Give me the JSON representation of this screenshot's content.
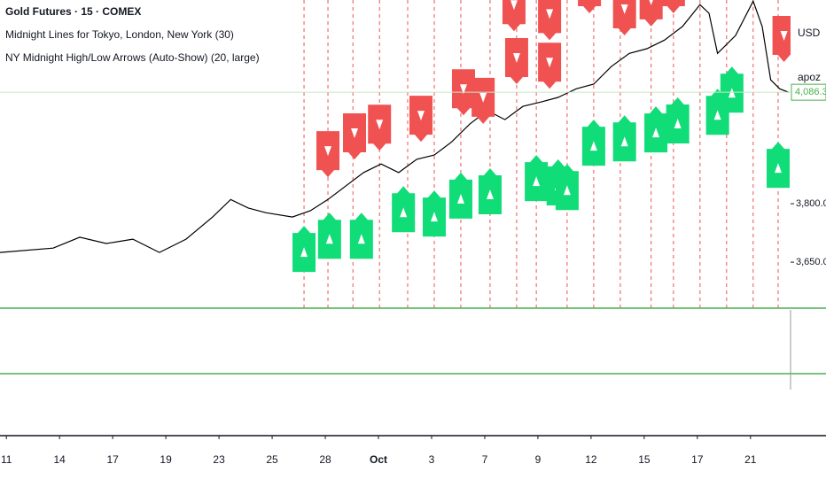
{
  "chart_data": {
    "type": "line",
    "title": "Gold Futures · 15 · COMEX",
    "indicators": [
      "Midnight Lines for Tokyo, London, New York (30)",
      "NY Midnight High/Low Arrows (Auto-Show) (20, large)"
    ],
    "currency": "USD",
    "symbol_label": "apoz",
    "color": "#000000",
    "x": [
      -0.12,
      0.88,
      1.38,
      1.88,
      2.38,
      2.88,
      3.38,
      3.88,
      4.22,
      4.55,
      4.88,
      5.38,
      5.72,
      6.05,
      6.38,
      6.72,
      7.05,
      7.38,
      7.72,
      8.05,
      8.38,
      8.72,
      9.05,
      9.38,
      9.72,
      10.05,
      10.38,
      10.72,
      11.05,
      11.38,
      11.72,
      12.05,
      12.38,
      12.72,
      13.05,
      13.22,
      13.38,
      13.72,
      14.05,
      14.22,
      14.38,
      14.55,
      14.72
    ],
    "values": [
      3675,
      3686,
      3714,
      3698,
      3709,
      3675,
      3709,
      3766,
      3811,
      3789,
      3777,
      3766,
      3782,
      3811,
      3845,
      3880,
      3902,
      3880,
      3914,
      3925,
      3959,
      4005,
      4039,
      4016,
      4050,
      4061,
      4073,
      4095,
      4107,
      4152,
      4186,
      4198,
      4220,
      4255,
      4311,
      4289,
      4186,
      4232,
      4320,
      4255,
      4118,
      4095,
      4086
    ],
    "xlim": [
      -0.12,
      14.72
    ],
    "ylim": [
      3532,
      4323
    ],
    "xticks": [
      {
        "value": 0,
        "label": "11"
      },
      {
        "value": 1,
        "label": "14"
      },
      {
        "value": 2,
        "label": "17"
      },
      {
        "value": 3,
        "label": "19"
      },
      {
        "value": 4,
        "label": "23"
      },
      {
        "value": 5,
        "label": "25"
      },
      {
        "value": 6,
        "label": "28"
      },
      {
        "value": 7,
        "label": "Oct"
      },
      {
        "value": 8,
        "label": "3"
      },
      {
        "value": 9,
        "label": "7"
      },
      {
        "value": 10,
        "label": "9"
      },
      {
        "value": 11,
        "label": "12"
      },
      {
        "value": 12,
        "label": "15"
      },
      {
        "value": 13,
        "label": "17"
      },
      {
        "value": 14,
        "label": "21"
      }
    ],
    "yticks": [
      {
        "value": 3650,
        "label": "3,650.0"
      },
      {
        "value": 3800,
        "label": "3,800.0"
      }
    ],
    "last_price": {
      "value": 4086.3,
      "label": "4,086.3"
    },
    "midnight_lines": [
      5.6,
      6.05,
      6.52,
      7.02,
      7.55,
      8.05,
      8.55,
      9.1,
      9.6,
      9.97,
      10.55,
      11.05,
      11.55,
      12.13,
      12.55,
      13.05,
      13.55,
      14.05,
      14.52
    ],
    "high_markers": {
      "color": "#f05252",
      "x": [
        6.05,
        6.55,
        7.02,
        7.8,
        8.6,
        8.97,
        9.6,
        10.22,
        11.63,
        12.13,
        12.55,
        14.63,
        9.55,
        10.22,
        10.97
      ],
      "values": [
        3868,
        3914,
        3936,
        3959,
        4027,
        4005,
        4107,
        4095,
        4232,
        4255,
        4289,
        4164,
        4243,
        4220,
        4289
      ]
    },
    "low_markers": {
      "color": "#10dc78",
      "x": [
        5.6,
        6.08,
        6.68,
        7.47,
        8.05,
        8.55,
        9.1,
        9.97,
        10.38,
        10.55,
        11.05,
        11.63,
        12.22,
        12.63,
        13.38,
        13.65,
        14.52
      ],
      "values": [
        3743,
        3777,
        3777,
        3845,
        3834,
        3880,
        3891,
        3925,
        3914,
        3902,
        4016,
        4027,
        4050,
        4073,
        4095,
        4152,
        3959
      ]
    }
  }
}
